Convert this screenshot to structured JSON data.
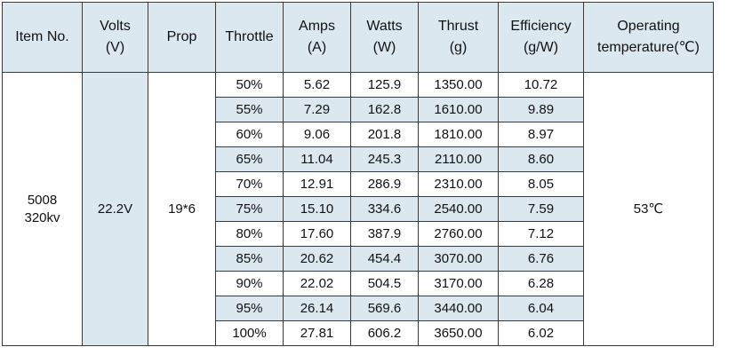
{
  "columns": [
    {
      "line1": "Item No.",
      "line2": ""
    },
    {
      "line1": "Volts",
      "line2": "(V)"
    },
    {
      "line1": "Prop",
      "line2": ""
    },
    {
      "line1": "Throttle",
      "line2": ""
    },
    {
      "line1": "Amps",
      "line2": "(A)"
    },
    {
      "line1": "Watts",
      "line2": "(W)"
    },
    {
      "line1": "Thrust",
      "line2": "(g)"
    },
    {
      "line1": "Efficiency",
      "line2": "(g/W)"
    },
    {
      "line1": "Operating",
      "line2": "temperature(℃)"
    }
  ],
  "item_no": {
    "line1": "5008",
    "line2": "320kv"
  },
  "volts": "22.2V",
  "prop": "19*6",
  "temperature": "53℃",
  "rows": [
    {
      "throttle": "50%",
      "amps": "5.62",
      "watts": "125.9",
      "thrust": "1350.00",
      "efficiency": "10.72"
    },
    {
      "throttle": "55%",
      "amps": "7.29",
      "watts": "162.8",
      "thrust": "1610.00",
      "efficiency": "9.89"
    },
    {
      "throttle": "60%",
      "amps": "9.06",
      "watts": "201.8",
      "thrust": "1810.00",
      "efficiency": "8.97"
    },
    {
      "throttle": "65%",
      "amps": "11.04",
      "watts": "245.3",
      "thrust": "2110.00",
      "efficiency": "8.60"
    },
    {
      "throttle": "70%",
      "amps": "12.91",
      "watts": "286.9",
      "thrust": "2310.00",
      "efficiency": "8.05"
    },
    {
      "throttle": "75%",
      "amps": "15.10",
      "watts": "334.6",
      "thrust": "2540.00",
      "efficiency": "7.59"
    },
    {
      "throttle": "80%",
      "amps": "17.60",
      "watts": "387.9",
      "thrust": "2760.00",
      "efficiency": "7.12"
    },
    {
      "throttle": "85%",
      "amps": "20.62",
      "watts": "454.4",
      "thrust": "3070.00",
      "efficiency": "6.76"
    },
    {
      "throttle": "90%",
      "amps": "22.02",
      "watts": "504.5",
      "thrust": "3170.00",
      "efficiency": "6.28"
    },
    {
      "throttle": "95%",
      "amps": "26.14",
      "watts": "569.6",
      "thrust": "3440.00",
      "efficiency": "6.04"
    },
    {
      "throttle": "100%",
      "amps": "27.81",
      "watts": "606.2",
      "thrust": "3650.00",
      "efficiency": "6.02"
    }
  ],
  "colors": {
    "header_fill": "#dce8f0",
    "border": "#3a3a3a",
    "text": "#111111"
  }
}
